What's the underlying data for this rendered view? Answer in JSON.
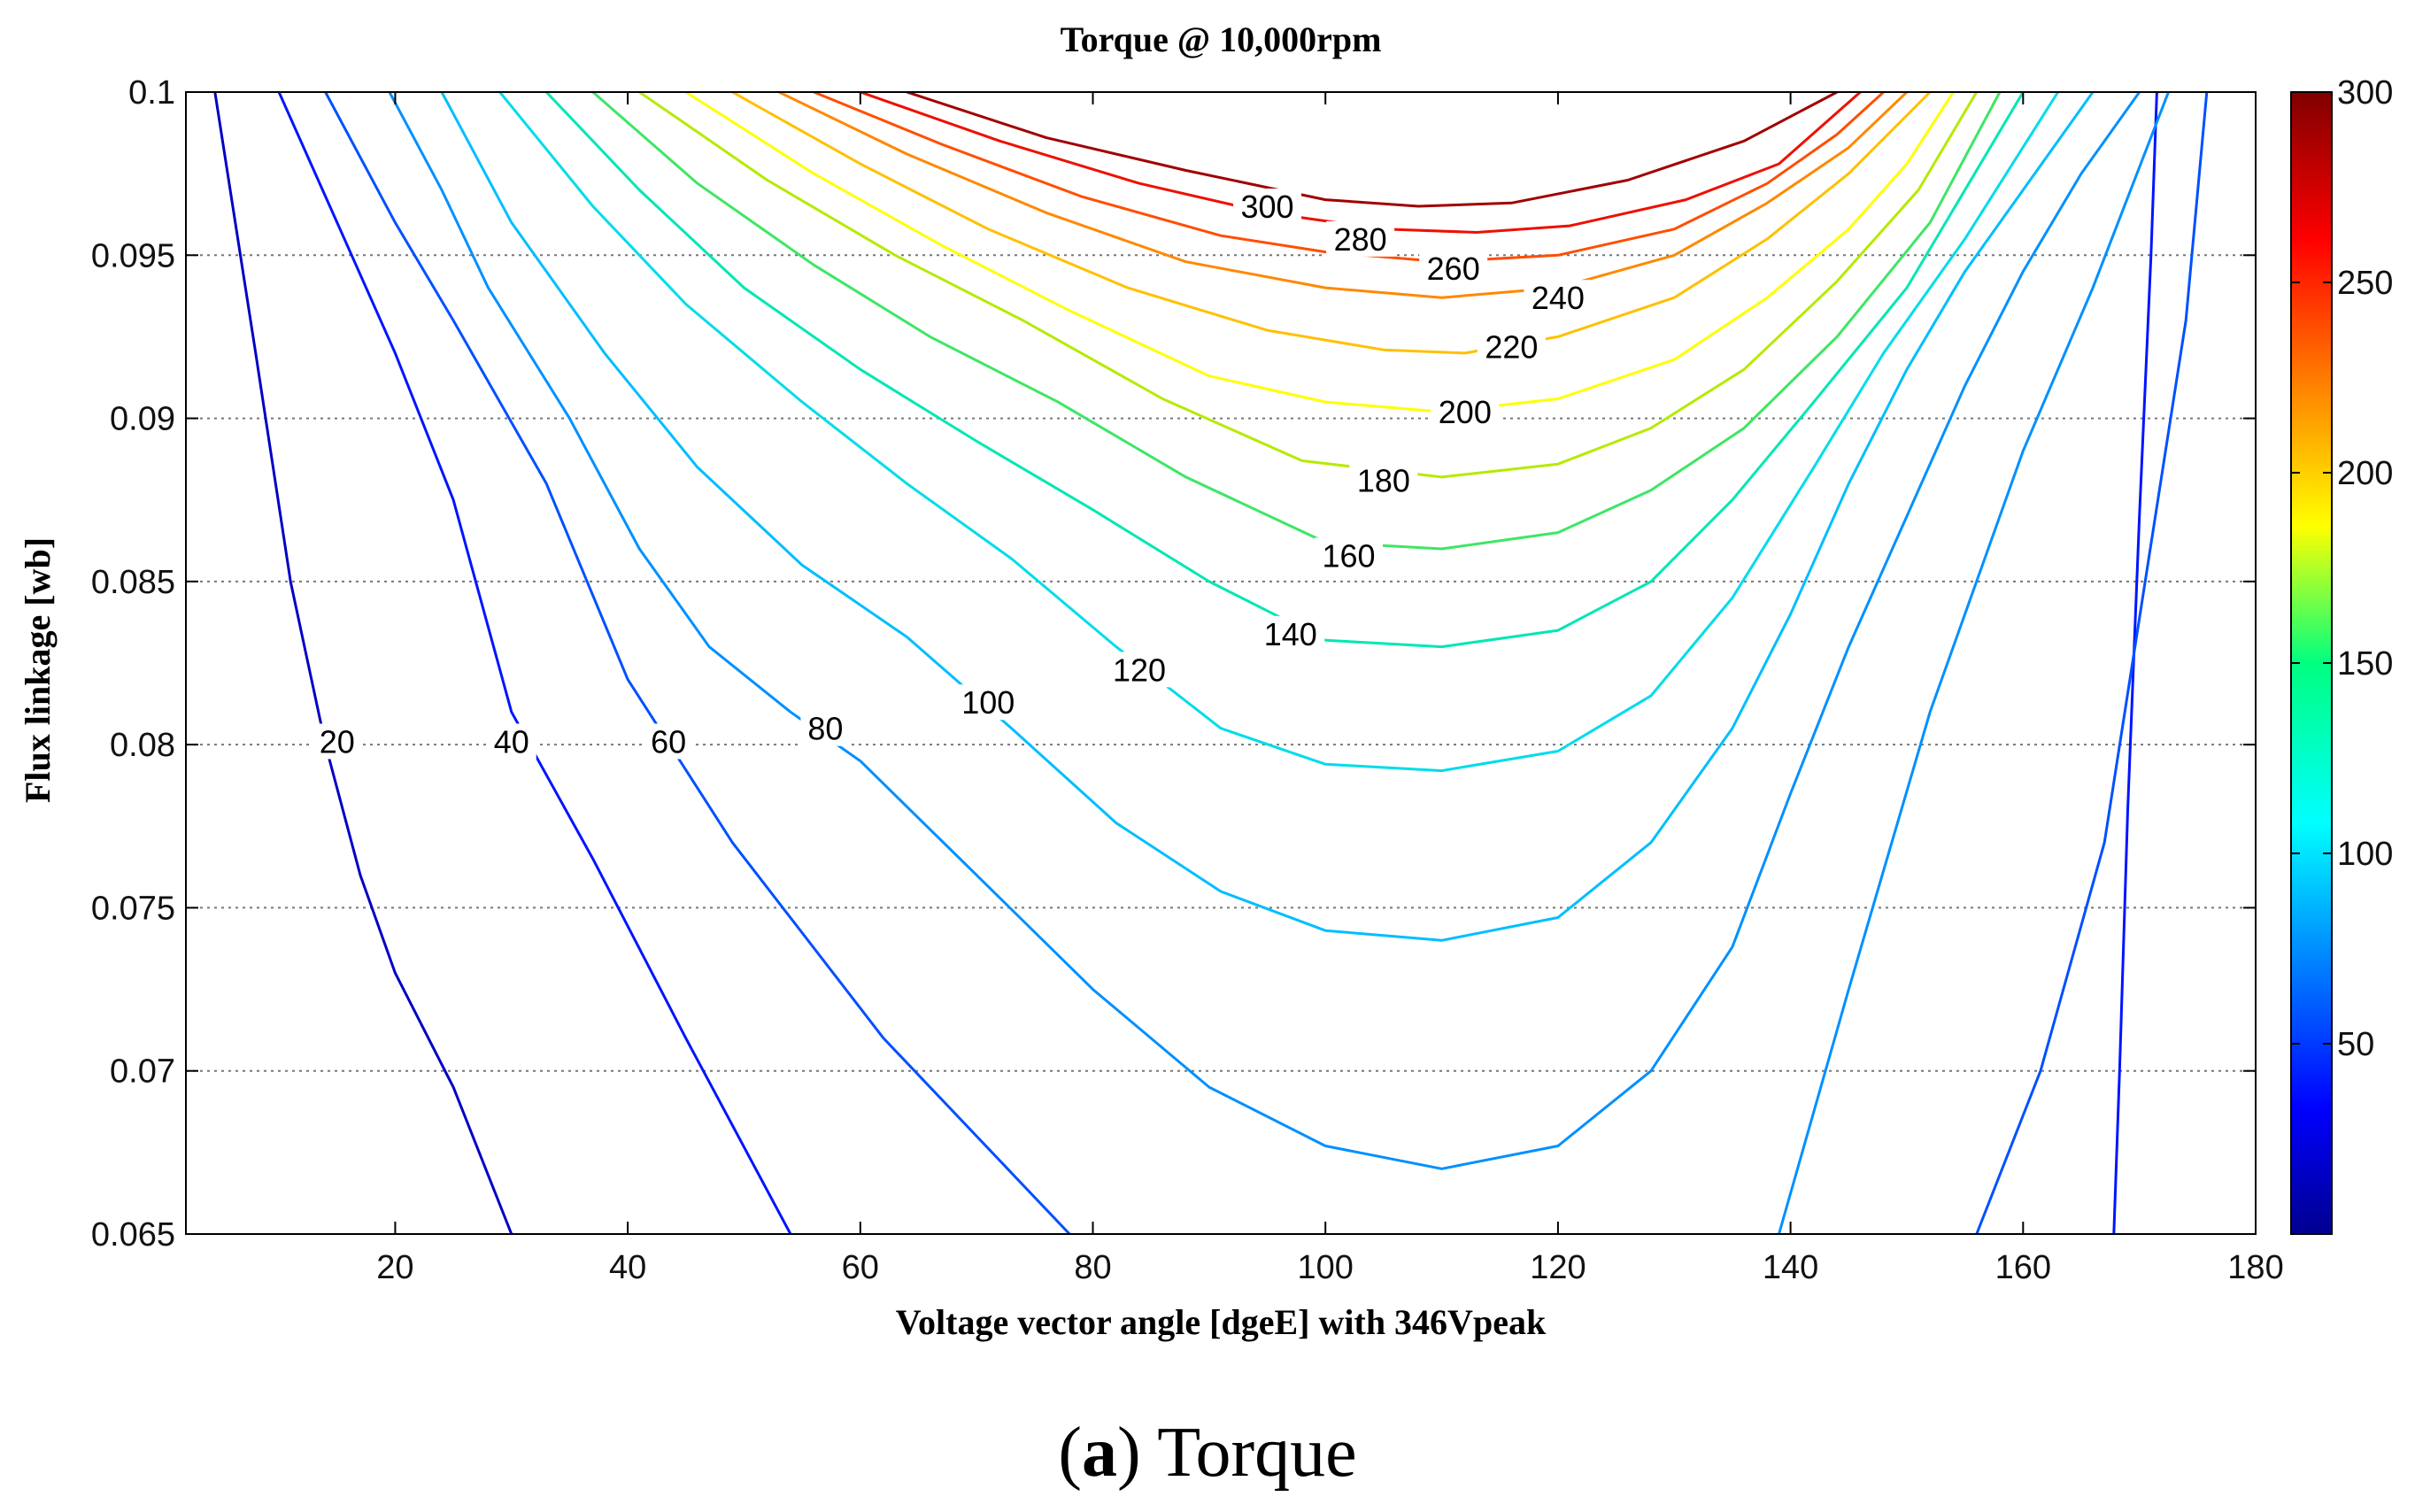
{
  "caption": {
    "letter": "a",
    "text": "Torque"
  },
  "chart_data": {
    "type": "contour",
    "title": "Torque @ 10,000rpm",
    "xlabel": "Voltage vector angle [dgeE] with 346Vpeak",
    "ylabel": "Flux linkage [wb]",
    "xlim": [
      2,
      180
    ],
    "ylim": [
      0.065,
      0.1
    ],
    "xticks": [
      20,
      40,
      60,
      80,
      100,
      120,
      140,
      160,
      180
    ],
    "yticks": [
      0.065,
      0.07,
      0.075,
      0.08,
      0.085,
      0.09,
      0.095,
      0.1
    ],
    "ytick_labels": [
      "0.065",
      "0.07",
      "0.075",
      "0.08",
      "0.085",
      "0.09",
      "0.095",
      "0.1"
    ],
    "grid": "horizontal dotted",
    "colormap": "jet",
    "colorbar": {
      "min": 0,
      "max": 300,
      "ticks": [
        50,
        100,
        150,
        200,
        250,
        300
      ]
    },
    "levels": [
      {
        "level": 20,
        "color": "#0000c4",
        "labeled": true,
        "left": [
          [
            4.5,
            0.1
          ],
          [
            8,
            0.092
          ],
          [
            11,
            0.085
          ],
          [
            14,
            0.08
          ],
          [
            17,
            0.076
          ],
          [
            20,
            0.073
          ],
          [
            25,
            0.0695
          ],
          [
            30,
            0.065
          ]
        ]
      },
      {
        "level": 40,
        "color": "#0014ff",
        "labeled": true,
        "left": [
          [
            10,
            0.1
          ],
          [
            15,
            0.096
          ],
          [
            20,
            0.092
          ],
          [
            25,
            0.0875
          ],
          [
            30,
            0.081
          ],
          [
            37,
            0.0765
          ],
          [
            45,
            0.071
          ],
          [
            54,
            0.065
          ]
        ],
        "right": [
          [
            171.5,
            0.1
          ],
          [
            171,
            0.095
          ],
          [
            170,
            0.087
          ],
          [
            169,
            0.078
          ],
          [
            168.3,
            0.07
          ],
          [
            167.8,
            0.065
          ]
        ]
      },
      {
        "level": 60,
        "color": "#0050ff",
        "labeled": true,
        "left": [
          [
            14,
            0.1
          ],
          [
            20,
            0.096
          ],
          [
            25,
            0.093
          ],
          [
            33,
            0.088
          ],
          [
            40,
            0.082
          ],
          [
            49,
            0.077
          ],
          [
            62,
            0.071
          ],
          [
            78,
            0.065
          ]
        ],
        "right": [
          [
            175.8,
            0.1
          ],
          [
            174,
            0.093
          ],
          [
            170.5,
            0.085
          ],
          [
            167,
            0.077
          ],
          [
            161.5,
            0.07
          ],
          [
            156,
            0.065
          ]
        ]
      },
      {
        "level": 80,
        "color": "#0090ff",
        "labeled": true,
        "left": [
          [
            19.5,
            0.1
          ],
          [
            24,
            0.097
          ],
          [
            28,
            0.094
          ],
          [
            35,
            0.09
          ],
          [
            41,
            0.086
          ],
          [
            47,
            0.083
          ],
          [
            54,
            0.081
          ],
          [
            60,
            0.0795
          ],
          [
            70,
            0.076
          ],
          [
            80,
            0.0725
          ],
          [
            90,
            0.0695
          ],
          [
            100,
            0.0677
          ],
          [
            110,
            0.067
          ],
          [
            120,
            0.0677
          ],
          [
            128,
            0.07
          ],
          [
            135,
            0.0738
          ],
          [
            140,
            0.0785
          ],
          [
            145,
            0.083
          ],
          [
            150,
            0.087
          ],
          [
            155,
            0.091
          ],
          [
            160,
            0.0945
          ],
          [
            165,
            0.0975
          ],
          [
            170,
            0.1
          ]
        ],
        "right": [
          [
            139,
            0.065
          ],
          [
            145,
            0.0725
          ],
          [
            152,
            0.081
          ],
          [
            160,
            0.089
          ],
          [
            166,
            0.094
          ],
          [
            172.5,
            0.1
          ]
        ]
      },
      {
        "level": 100,
        "color": "#00beff",
        "labeled": true,
        "left": [
          [
            24,
            0.1
          ],
          [
            30,
            0.096
          ],
          [
            38,
            0.092
          ],
          [
            46,
            0.0885
          ],
          [
            55,
            0.0855
          ],
          [
            64,
            0.0833
          ],
          [
            73,
            0.0805
          ],
          [
            82,
            0.0776
          ],
          [
            91,
            0.0755
          ],
          [
            100,
            0.0743
          ],
          [
            110,
            0.074
          ],
          [
            120,
            0.0747
          ],
          [
            128,
            0.077
          ],
          [
            135,
            0.0805
          ],
          [
            140,
            0.084
          ],
          [
            145,
            0.088
          ],
          [
            150,
            0.0915
          ],
          [
            155,
            0.0945
          ],
          [
            160,
            0.097
          ],
          [
            166,
            0.1
          ]
        ]
      },
      {
        "level": 120,
        "color": "#00dcea",
        "labeled": true,
        "left": [
          [
            29,
            0.1
          ],
          [
            37,
            0.0965
          ],
          [
            45,
            0.0935
          ],
          [
            55,
            0.0905
          ],
          [
            64,
            0.088
          ],
          [
            73,
            0.0857
          ],
          [
            82,
            0.083
          ],
          [
            91,
            0.0805
          ],
          [
            100,
            0.0794
          ],
          [
            110,
            0.0792
          ],
          [
            120,
            0.0798
          ],
          [
            128,
            0.0815
          ],
          [
            135,
            0.0845
          ],
          [
            142,
            0.0885
          ],
          [
            148,
            0.092
          ],
          [
            155,
            0.0955
          ],
          [
            163,
            0.1
          ]
        ]
      },
      {
        "level": 140,
        "color": "#00e7b4",
        "labeled": true,
        "left": [
          [
            33,
            0.1
          ],
          [
            41,
            0.097
          ],
          [
            50,
            0.094
          ],
          [
            60,
            0.0915
          ],
          [
            70,
            0.0893
          ],
          [
            80,
            0.0872
          ],
          [
            90,
            0.085
          ],
          [
            100,
            0.0832
          ],
          [
            110,
            0.083
          ],
          [
            120,
            0.0835
          ],
          [
            128,
            0.085
          ],
          [
            135,
            0.0875
          ],
          [
            142,
            0.0905
          ],
          [
            150,
            0.094
          ],
          [
            160,
            0.1
          ]
        ]
      },
      {
        "level": 160,
        "color": "#3ee664",
        "labeled": true,
        "left": [
          [
            37,
            0.1
          ],
          [
            46,
            0.0972
          ],
          [
            56,
            0.0947
          ],
          [
            66,
            0.0925
          ],
          [
            77,
            0.0905
          ],
          [
            88,
            0.0882
          ],
          [
            100,
            0.0862
          ],
          [
            110,
            0.086
          ],
          [
            120,
            0.0865
          ],
          [
            128,
            0.0878
          ],
          [
            136,
            0.0897
          ],
          [
            144,
            0.0925
          ],
          [
            152,
            0.096
          ],
          [
            158,
            0.1
          ]
        ]
      },
      {
        "level": 180,
        "color": "#b6ea00",
        "labeled": true,
        "left": [
          [
            41,
            0.1
          ],
          [
            52,
            0.0973
          ],
          [
            63,
            0.095
          ],
          [
            74,
            0.093
          ],
          [
            86,
            0.0906
          ],
          [
            98,
            0.0887
          ],
          [
            110,
            0.0882
          ],
          [
            120,
            0.0886
          ],
          [
            128,
            0.0897
          ],
          [
            136,
            0.0915
          ],
          [
            144,
            0.0942
          ],
          [
            151,
            0.097
          ],
          [
            156,
            0.1
          ]
        ]
      },
      {
        "level": 200,
        "color": "#ffff00",
        "labeled": true,
        "left": [
          [
            45,
            0.1
          ],
          [
            56,
            0.0975
          ],
          [
            67,
            0.0953
          ],
          [
            78,
            0.0933
          ],
          [
            90,
            0.0913
          ],
          [
            100,
            0.0905
          ],
          [
            110,
            0.0902
          ],
          [
            120,
            0.0906
          ],
          [
            130,
            0.0918
          ],
          [
            138,
            0.0937
          ],
          [
            145,
            0.0958
          ],
          [
            150,
            0.0978
          ],
          [
            154,
            0.1
          ]
        ]
      },
      {
        "level": 220,
        "color": "#ffc000",
        "labeled": true,
        "left": [
          [
            49,
            0.1
          ],
          [
            60,
            0.0978
          ],
          [
            71,
            0.0958
          ],
          [
            83,
            0.094
          ],
          [
            95,
            0.0927
          ],
          [
            105,
            0.0921
          ],
          [
            112,
            0.092
          ],
          [
            120,
            0.0925
          ],
          [
            130,
            0.0937
          ],
          [
            138,
            0.0955
          ],
          [
            145,
            0.0975
          ],
          [
            152,
            0.1
          ]
        ]
      },
      {
        "level": 240,
        "color": "#ff8800",
        "labeled": true,
        "left": [
          [
            53,
            0.1
          ],
          [
            64,
            0.0981
          ],
          [
            76,
            0.0963
          ],
          [
            88,
            0.0948
          ],
          [
            100,
            0.094
          ],
          [
            110,
            0.0937
          ],
          [
            120,
            0.094
          ],
          [
            130,
            0.095
          ],
          [
            138,
            0.0966
          ],
          [
            145,
            0.0983
          ],
          [
            150,
            0.1
          ]
        ]
      },
      {
        "level": 260,
        "color": "#ff4e00",
        "labeled": true,
        "left": [
          [
            56,
            0.1
          ],
          [
            67,
            0.0984
          ],
          [
            79,
            0.0968
          ],
          [
            91,
            0.0956
          ],
          [
            100,
            0.0951
          ],
          [
            110,
            0.0948
          ],
          [
            120,
            0.095
          ],
          [
            130,
            0.0958
          ],
          [
            138,
            0.0972
          ],
          [
            144,
            0.0987
          ],
          [
            148,
            0.1
          ]
        ]
      },
      {
        "level": 280,
        "color": "#ee1000",
        "labeled": true,
        "left": [
          [
            60,
            0.1
          ],
          [
            72,
            0.0985
          ],
          [
            84,
            0.0972
          ],
          [
            95,
            0.0963
          ],
          [
            105,
            0.0958
          ],
          [
            113,
            0.0957
          ],
          [
            121,
            0.0959
          ],
          [
            131,
            0.0967
          ],
          [
            139,
            0.0978
          ],
          [
            146,
            0.1
          ]
        ]
      },
      {
        "level": 300,
        "color": "#a00000",
        "labeled": true,
        "left": [
          [
            64,
            0.1
          ],
          [
            76,
            0.0986
          ],
          [
            88,
            0.0976
          ],
          [
            100,
            0.0967
          ],
          [
            108,
            0.0965
          ],
          [
            116,
            0.0966
          ],
          [
            126,
            0.0973
          ],
          [
            136,
            0.0985
          ],
          [
            144,
            0.1
          ]
        ]
      }
    ],
    "contour_labels": [
      {
        "text": "20",
        "x": 15,
        "y": 0.0801
      },
      {
        "text": "40",
        "x": 30,
        "y": 0.0801
      },
      {
        "text": "60",
        "x": 43.5,
        "y": 0.0801
      },
      {
        "text": "80",
        "x": 57,
        "y": 0.0805
      },
      {
        "text": "100",
        "x": 71,
        "y": 0.0813
      },
      {
        "text": "120",
        "x": 84,
        "y": 0.0823
      },
      {
        "text": "140",
        "x": 97,
        "y": 0.0834
      },
      {
        "text": "160",
        "x": 102,
        "y": 0.0858
      },
      {
        "text": "180",
        "x": 105,
        "y": 0.0881
      },
      {
        "text": "200",
        "x": 112,
        "y": 0.0902
      },
      {
        "text": "220",
        "x": 116,
        "y": 0.0922
      },
      {
        "text": "240",
        "x": 120,
        "y": 0.0937
      },
      {
        "text": "260",
        "x": 111,
        "y": 0.0946
      },
      {
        "text": "280",
        "x": 103,
        "y": 0.0955
      },
      {
        "text": "300",
        "x": 95,
        "y": 0.0965
      }
    ]
  }
}
